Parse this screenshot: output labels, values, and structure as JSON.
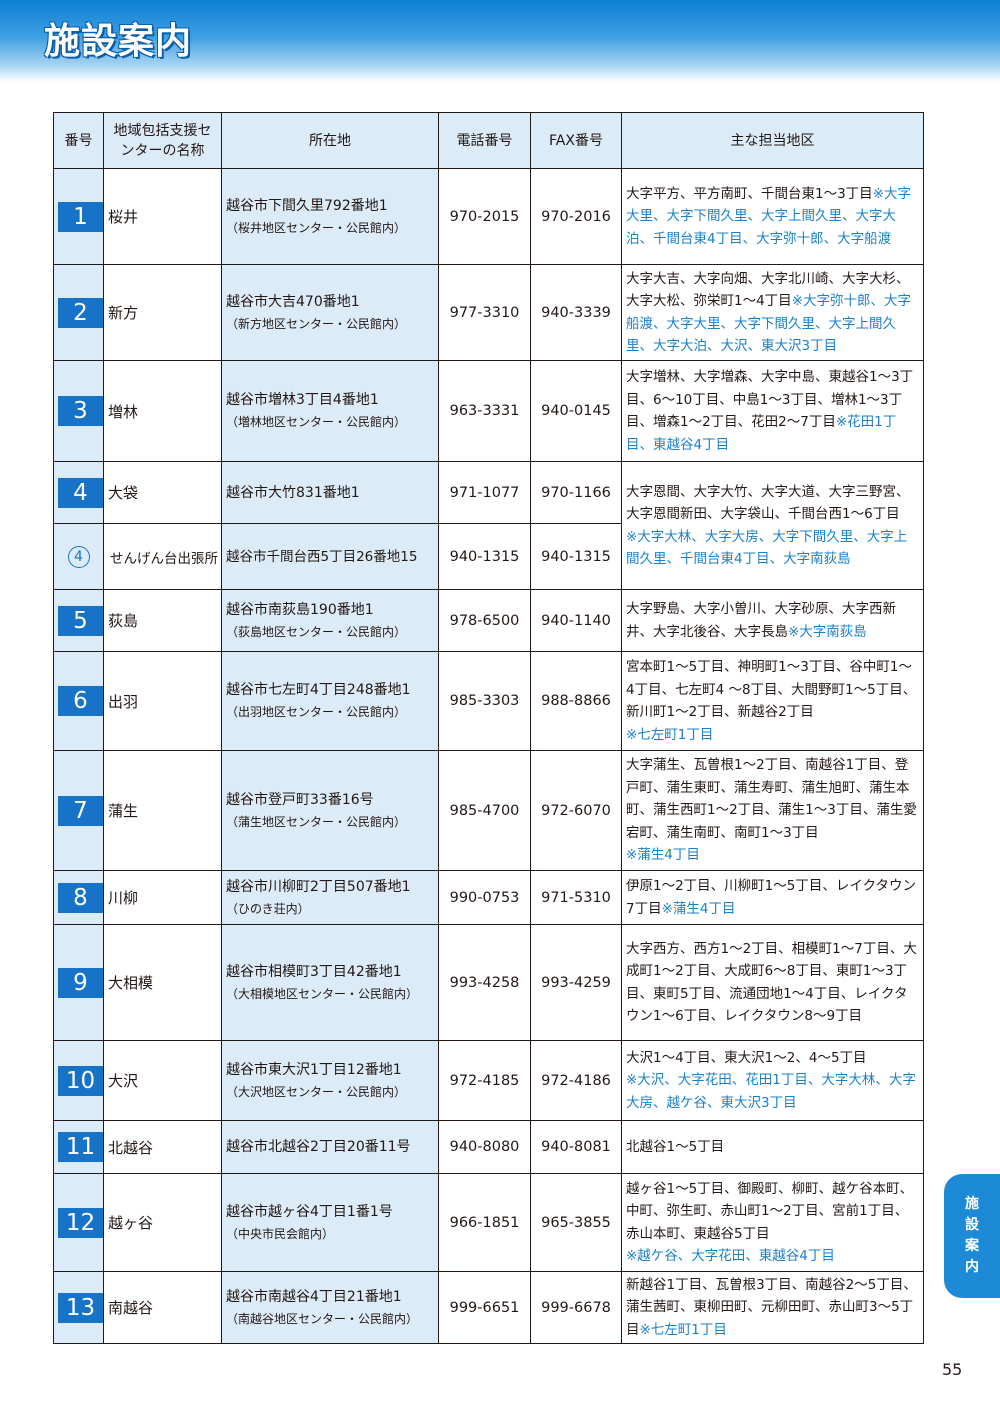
{
  "header": {
    "title": "施設案内"
  },
  "table": {
    "headers": {
      "number": "番号",
      "center_name": "地域包括支援センターの名称",
      "address": "所在地",
      "tel": "電話番号",
      "fax": "FAX番号",
      "area": "主な担当地区"
    },
    "rows": [
      {
        "number": "1",
        "name": "桜井",
        "address": "越谷市下間久里792番地1",
        "facility": "（桜井地区センター・公民館内）",
        "tel": "970-2015",
        "fax": "970-2016",
        "area": "大字平方、平方南町、千間台東1～3丁目",
        "area_note": "※大字大里、大字下間久里、大字上間久里、大字大泊、千間台東4丁目、大字弥十郎、大字船渡"
      },
      {
        "number": "2",
        "name": "新方",
        "address": "越谷市大吉470番地1",
        "facility": "（新方地区センター・公民館内）",
        "tel": "977-3310",
        "fax": "940-3339",
        "area": "大字大吉、大字向畑、大字北川崎、大字大杉、大字大松、弥栄町1～4丁目",
        "area_note": "※大字弥十郎、大字船渡、大字大里、大字下間久里、大字上間久里、大字大泊、大沢、東大沢3丁目"
      },
      {
        "number": "3",
        "name": "増林",
        "address": "越谷市増林3丁目4番地1",
        "facility": "（増林地区センター・公民館内）",
        "tel": "963-3331",
        "fax": "940-0145",
        "area": "大字増林、大字増森、大字中島、東越谷1～3丁目、6～10丁目、中島1～3丁目、増林1～3丁目、増森1～2丁目、花田2～7丁目",
        "area_note": "※花田1丁目、東越谷4丁目"
      },
      {
        "number": "4",
        "name": "大袋",
        "address": "越谷市大竹831番地1",
        "facility": "",
        "tel": "971-1077",
        "fax": "970-1166",
        "area": "大字恩間、大字大竹、大字大道、大字三野宮、大字恩間新田、大字袋山、千間台西1～6丁目",
        "area_note": "※大字大林、大字大房、大字下間久里、大字上間久里、千間台東4丁目、大字南荻島"
      },
      {
        "number": "④",
        "name": "せんげん台出張所",
        "address": "越谷市千間台西5丁目26番地15",
        "facility": "",
        "tel": "940-1315",
        "fax": "940-1315",
        "area": "",
        "area_note": ""
      },
      {
        "number": "5",
        "name": "荻島",
        "address": "越谷市南荻島190番地1",
        "facility": "（荻島地区センター・公民館内）",
        "tel": "978-6500",
        "fax": "940-1140",
        "area": "大字野島、大字小曽川、大字砂原、大字西新井、大字北後谷、大字長島",
        "area_note": "※大字南荻島"
      },
      {
        "number": "6",
        "name": "出羽",
        "address": "越谷市七左町4丁目248番地1",
        "facility": "（出羽地区センター・公民館内）",
        "tel": "985-3303",
        "fax": "988-8866",
        "area": "宮本町1～5丁目、神明町1～3丁目、谷中町1～4丁目、七左町4 ～8丁目、大間野町1～5丁目、新川町1～2丁目、新越谷2丁目",
        "area_note": "※七左町1丁目"
      },
      {
        "number": "7",
        "name": "蒲生",
        "address": "越谷市登戸町33番16号",
        "facility": "（蒲生地区センター・公民館内）",
        "tel": "985-4700",
        "fax": "972-6070",
        "area": "大字蒲生、瓦曽根1～2丁目、南越谷1丁目、登戸町、蒲生東町、蒲生寿町、蒲生旭町、蒲生本町、蒲生西町1～2丁目、蒲生1～3丁目、蒲生愛宕町、蒲生南町、南町1～3丁目",
        "area_note": "※蒲生4丁目"
      },
      {
        "number": "8",
        "name": "川柳",
        "address": "越谷市川柳町2丁目507番地1",
        "facility": "（ひのき荘内）",
        "tel": "990-0753",
        "fax": "971-5310",
        "area": "伊原1～2丁目、川柳町1～5丁目、レイクタウン7丁目",
        "area_note": "※蒲生4丁目"
      },
      {
        "number": "9",
        "name": "大相模",
        "address": "越谷市相模町3丁目42番地1",
        "facility": "（大相模地区センター・公民館内）",
        "tel": "993-4258",
        "fax": "993-4259",
        "area": "大字西方、西方1～2丁目、相模町1～7丁目、大成町1～2丁目、大成町6～8丁目、東町1～3丁目、東町5丁目、流通団地1～4丁目、レイクタウン1～6丁目、レイクタウン8～9丁目",
        "area_note": ""
      },
      {
        "number": "10",
        "name": "大沢",
        "address": "越谷市東大沢1丁目12番地1",
        "facility": "（大沢地区センター・公民館内）",
        "tel": "972-4185",
        "fax": "972-4186",
        "area": "大沢1～4丁目、東大沢1～2、4～5丁目",
        "area_note": "※大沢、大字花田、花田1丁目、大字大林、大字大房、越ケ谷、東大沢3丁目"
      },
      {
        "number": "11",
        "name": "北越谷",
        "address": "越谷市北越谷2丁目20番11号",
        "facility": "",
        "tel": "940-8080",
        "fax": "940-8081",
        "area": "北越谷1～5丁目",
        "area_note": ""
      },
      {
        "number": "12",
        "name": "越ヶ谷",
        "address": "越谷市越ヶ谷4丁目1番1号",
        "facility": "（中央市民会館内）",
        "tel": "966-1851",
        "fax": "965-3855",
        "area": "越ヶ谷1～5丁目、御殿町、柳町、越ケ谷本町、中町、弥生町、赤山町1～2丁目、宮前1丁目、赤山本町、東越谷5丁目",
        "area_note": "※越ケ谷、大字花田、東越谷4丁目"
      },
      {
        "number": "13",
        "name": "南越谷",
        "address": "越谷市南越谷4丁目21番地1",
        "facility": "（南越谷地区センター・公民館内）",
        "tel": "999-6651",
        "fax": "999-6678",
        "area": "新越谷1丁目、瓦曽根3丁目、南越谷2～5丁目、蒲生茜町、東柳田町、元柳田町、赤山町3～5丁目",
        "area_note": "※七左町1丁目"
      }
    ]
  },
  "side_tab": {
    "label": "施設案内"
  },
  "page_number": "55",
  "colors": {
    "accent_blue": "#1673c7",
    "note_blue": "#1b80c8",
    "cell_tint": "#dcebf8"
  }
}
